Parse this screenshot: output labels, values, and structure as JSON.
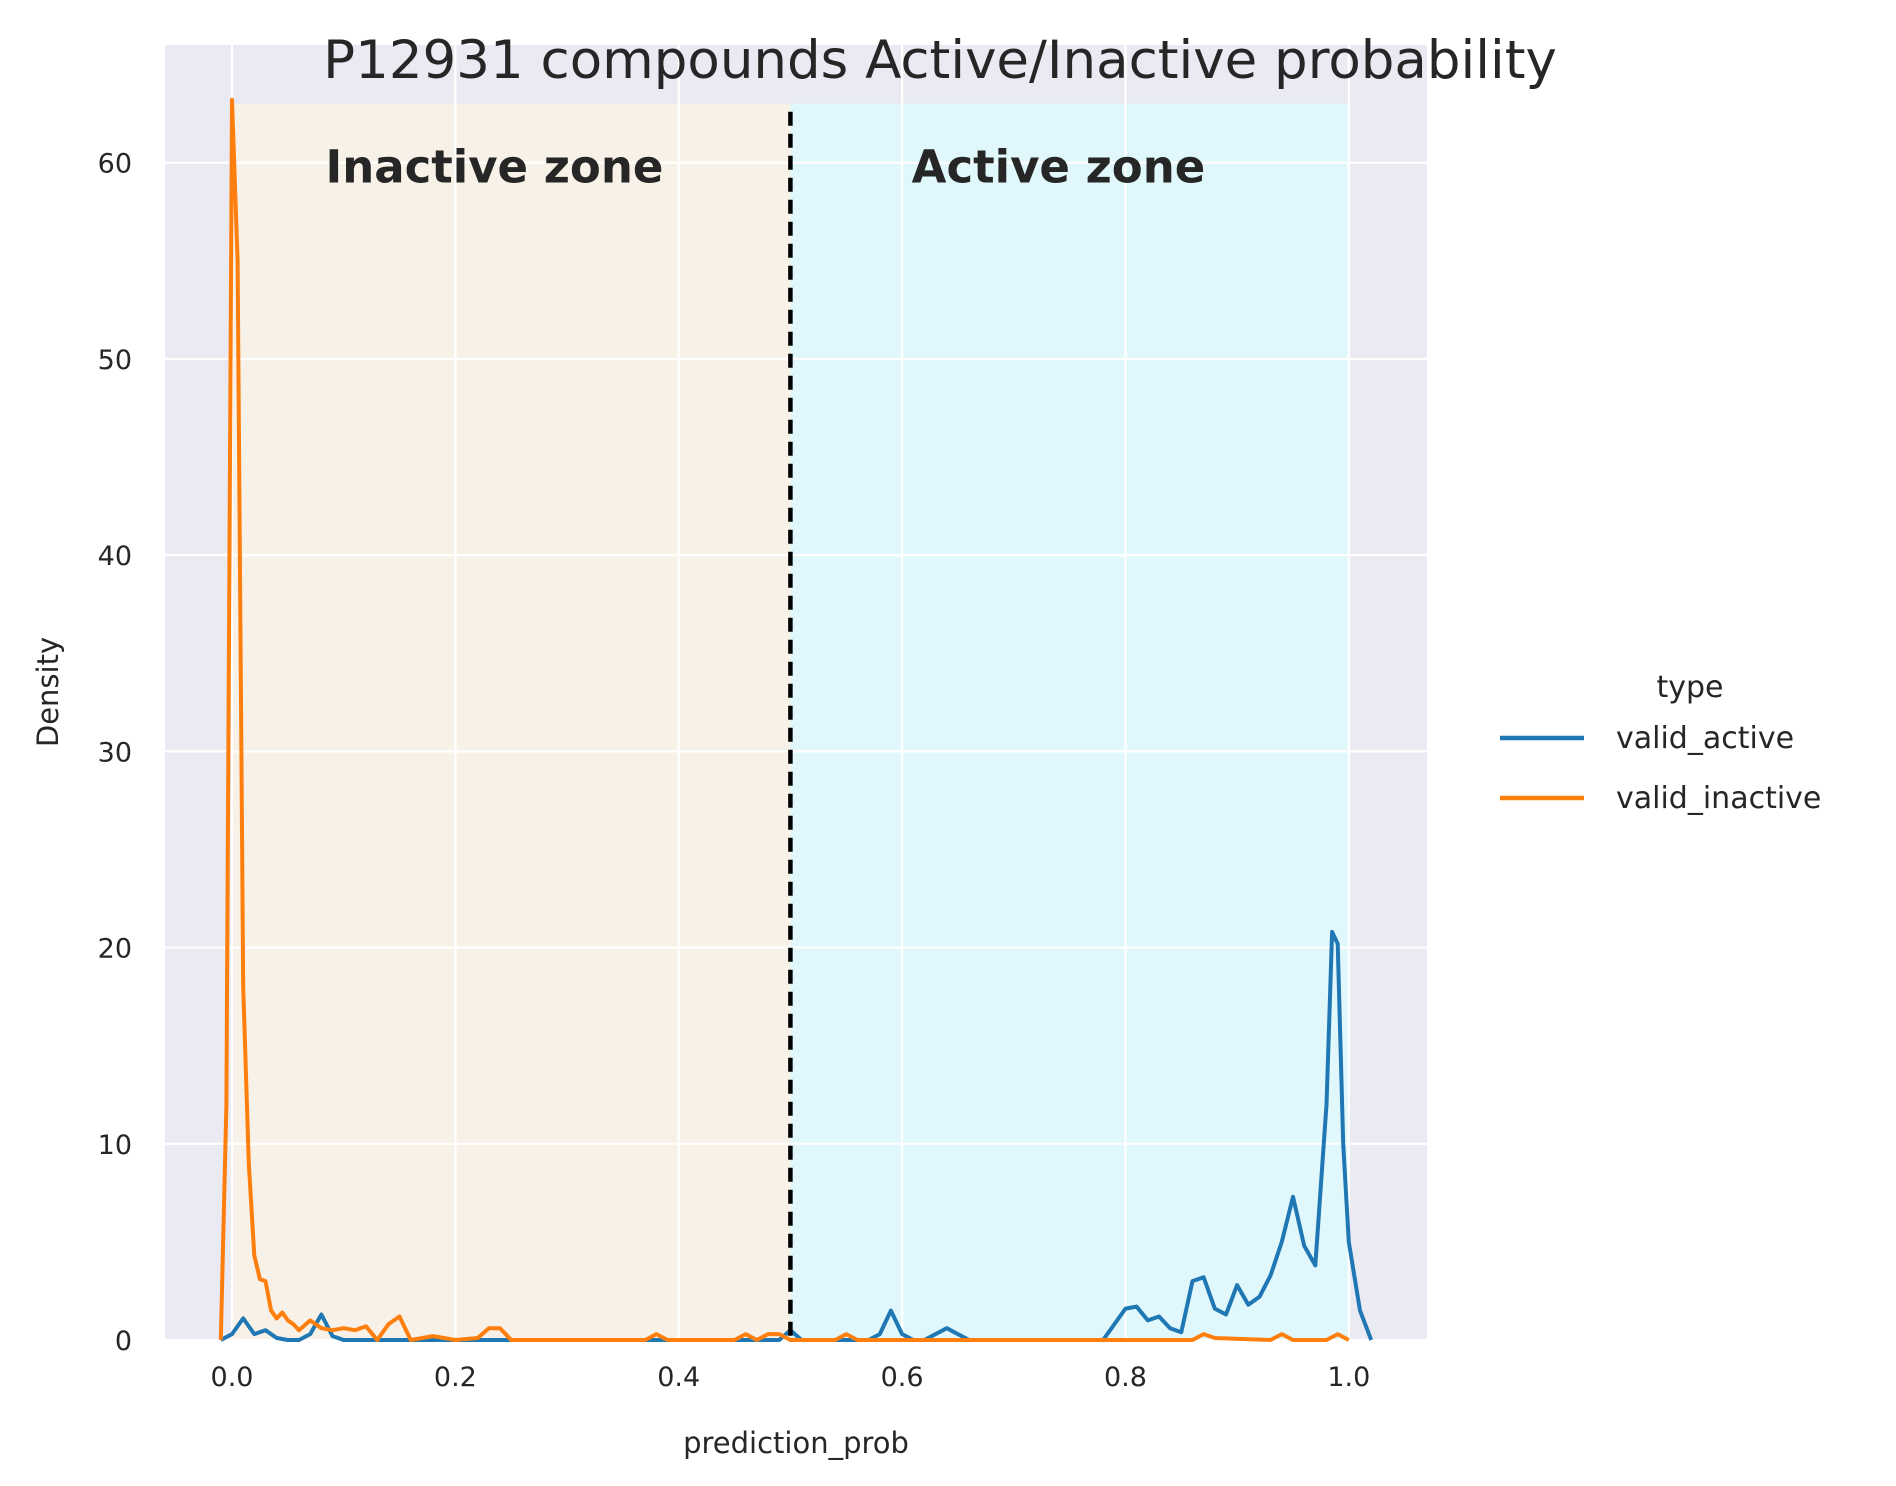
{
  "chart_data": {
    "type": "line",
    "title": "P12931 compounds Active/Inactive probability",
    "xlabel": "prediction_prob",
    "ylabel": "Density",
    "xlim": [
      -0.06,
      1.07
    ],
    "ylim": [
      0,
      66
    ],
    "xticks": [
      0.0,
      0.2,
      0.4,
      0.6,
      0.8,
      1.0
    ],
    "xtick_labels": [
      "0.0",
      "0.2",
      "0.4",
      "0.6",
      "0.8",
      "1.0"
    ],
    "yticks": [
      0,
      10,
      20,
      30,
      40,
      50,
      60
    ],
    "ytick_labels": [
      "0",
      "10",
      "20",
      "30",
      "40",
      "50",
      "60"
    ],
    "grid": true,
    "background": "#eaeaf2",
    "threshold": 0.5,
    "zones": [
      {
        "label": "Inactive zone",
        "x_start": 0.0,
        "x_end": 0.5,
        "y_end": 63,
        "color": "#f8f1e7",
        "label_x": 0.235,
        "label_y": 59
      },
      {
        "label": "Active zone",
        "x_start": 0.5,
        "x_end": 1.0,
        "y_end": 63,
        "color": "#e0f8fb",
        "label_x": 0.74,
        "label_y": 59
      }
    ],
    "legend": {
      "title": "type",
      "placement": "center-right"
    },
    "series": [
      {
        "name": "valid_active",
        "color": "#1f77b4",
        "x": [
          -0.01,
          0.0,
          0.01,
          0.02,
          0.03,
          0.04,
          0.05,
          0.06,
          0.07,
          0.08,
          0.09,
          0.1,
          0.2,
          0.49,
          0.5,
          0.51,
          0.52,
          0.57,
          0.58,
          0.59,
          0.6,
          0.61,
          0.62,
          0.64,
          0.65,
          0.66,
          0.67,
          0.78,
          0.8,
          0.81,
          0.82,
          0.83,
          0.84,
          0.85,
          0.86,
          0.87,
          0.88,
          0.89,
          0.9,
          0.91,
          0.92,
          0.93,
          0.94,
          0.95,
          0.96,
          0.97,
          0.98,
          0.985,
          0.99,
          0.995,
          1.0,
          1.01,
          1.02
        ],
        "y": [
          0,
          0.3,
          1.1,
          0.3,
          0.5,
          0.1,
          0,
          0,
          0.3,
          1.3,
          0.2,
          0,
          0,
          0,
          0.5,
          0,
          0,
          0,
          0.3,
          1.5,
          0.3,
          0,
          0,
          0.6,
          0.3,
          0,
          0,
          0,
          1.6,
          1.7,
          1.0,
          1.2,
          0.6,
          0.4,
          3.0,
          3.2,
          1.6,
          1.3,
          2.8,
          1.8,
          2.2,
          3.3,
          5.0,
          7.3,
          4.8,
          3.8,
          12.0,
          20.8,
          20.2,
          10.0,
          5.0,
          1.5,
          0
        ]
      },
      {
        "name": "valid_inactive",
        "color": "#ff7f0e",
        "x": [
          -0.01,
          -0.005,
          0.0,
          0.005,
          0.01,
          0.015,
          0.02,
          0.025,
          0.03,
          0.035,
          0.04,
          0.045,
          0.05,
          0.055,
          0.06,
          0.07,
          0.08,
          0.09,
          0.1,
          0.11,
          0.12,
          0.13,
          0.14,
          0.15,
          0.16,
          0.18,
          0.2,
          0.22,
          0.23,
          0.24,
          0.25,
          0.3,
          0.37,
          0.38,
          0.39,
          0.45,
          0.46,
          0.47,
          0.48,
          0.49,
          0.5,
          0.54,
          0.55,
          0.56,
          0.86,
          0.87,
          0.88,
          0.93,
          0.94,
          0.95,
          0.98,
          0.99,
          1.0
        ],
        "y": [
          0,
          12.0,
          63.2,
          55.0,
          18.0,
          9.0,
          4.3,
          3.1,
          3.0,
          1.5,
          1.1,
          1.4,
          1.0,
          0.8,
          0.5,
          1.0,
          0.6,
          0.5,
          0.6,
          0.5,
          0.7,
          0,
          0.8,
          1.2,
          0,
          0.2,
          0,
          0.1,
          0.6,
          0.6,
          0,
          0,
          0,
          0.3,
          0,
          0,
          0.3,
          0,
          0.3,
          0.3,
          0,
          0,
          0.3,
          0,
          0,
          0.3,
          0.1,
          0,
          0.3,
          0,
          0,
          0.3,
          0
        ]
      }
    ]
  }
}
